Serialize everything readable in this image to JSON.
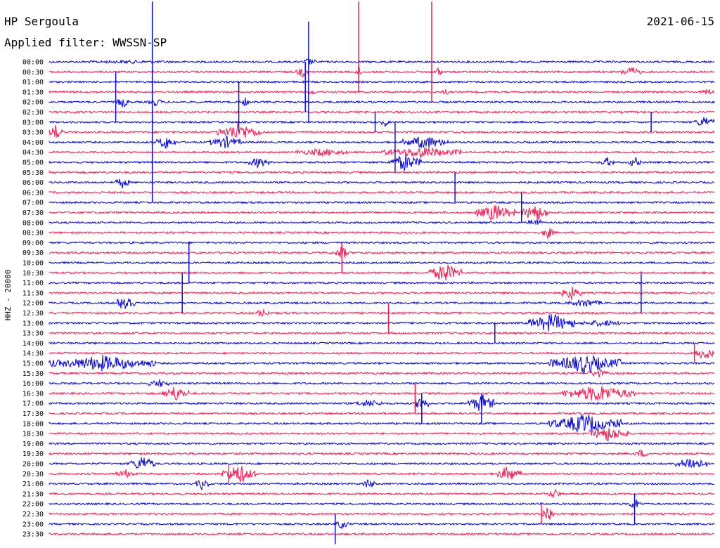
{
  "header": {
    "station": "HP Sergoula",
    "date": "2021-06-15",
    "filter_label": "Applied filter: WWSSN-SP"
  },
  "channel_label": "HHZ - 20000",
  "colors": {
    "odd": "#0000e0",
    "even": "#ff1450",
    "background": "#ffffff"
  },
  "chart_data": {
    "type": "helicorder",
    "row_interval_minutes": 30,
    "row_labels": [
      "00:00",
      "00:30",
      "01:00",
      "01:30",
      "02:00",
      "02:30",
      "03:00",
      "03:30",
      "04:00",
      "04:30",
      "05:00",
      "05:30",
      "06:00",
      "06:30",
      "07:00",
      "07:30",
      "08:00",
      "08:30",
      "09:00",
      "09:30",
      "10:00",
      "10:30",
      "11:00",
      "11:30",
      "12:00",
      "12:30",
      "13:00",
      "13:30",
      "14:00",
      "14:30",
      "15:00",
      "15:30",
      "16:00",
      "16:30",
      "17:00",
      "17:30",
      "18:00",
      "18:30",
      "19:00",
      "19:30",
      "20:00",
      "20:30",
      "21:00",
      "21:30",
      "22:00",
      "22:30",
      "23:00",
      "23:30"
    ],
    "row_colors": [
      "odd",
      "even"
    ],
    "events": [
      [
        0,
        0.06,
        0.18,
        0.1
      ],
      [
        0,
        0.38,
        0.4,
        0.35
      ],
      [
        1,
        0.37,
        0.39,
        0.5
      ],
      [
        1,
        0.46,
        0.47,
        0.6
      ],
      [
        1,
        0.58,
        0.59,
        0.6
      ],
      [
        1,
        0.86,
        0.89,
        0.5
      ],
      [
        3,
        0.39,
        0.4,
        0.3
      ],
      [
        3,
        0.59,
        0.6,
        0.45
      ],
      [
        3,
        0.98,
        1.0,
        0.3
      ],
      [
        4,
        0.1,
        0.12,
        0.6
      ],
      [
        4,
        0.15,
        0.17,
        0.4
      ],
      [
        4,
        0.29,
        0.3,
        0.5
      ],
      [
        6,
        0.5,
        0.51,
        0.5
      ],
      [
        6,
        0.97,
        1.0,
        0.6
      ],
      [
        7,
        0.0,
        0.02,
        0.8
      ],
      [
        7,
        0.25,
        0.32,
        0.9
      ],
      [
        8,
        0.16,
        0.19,
        0.7
      ],
      [
        8,
        0.24,
        0.29,
        0.6
      ],
      [
        8,
        0.53,
        0.6,
        0.7
      ],
      [
        9,
        0.37,
        0.45,
        0.35
      ],
      [
        9,
        0.5,
        0.62,
        0.55
      ],
      [
        10,
        0.3,
        0.33,
        0.55
      ],
      [
        10,
        0.51,
        0.56,
        0.9
      ],
      [
        10,
        0.83,
        0.85,
        0.5
      ],
      [
        10,
        0.87,
        0.89,
        0.5
      ],
      [
        12,
        0.1,
        0.12,
        0.6
      ],
      [
        15,
        0.64,
        0.7,
        0.9
      ],
      [
        15,
        0.71,
        0.75,
        1.0
      ],
      [
        16,
        0.72,
        0.74,
        0.5
      ],
      [
        17,
        0.74,
        0.76,
        0.6
      ],
      [
        19,
        0.43,
        0.45,
        0.75
      ],
      [
        21,
        0.57,
        0.62,
        1.0
      ],
      [
        23,
        0.77,
        0.8,
        0.7
      ],
      [
        24,
        0.1,
        0.13,
        1.0
      ],
      [
        24,
        0.78,
        0.83,
        0.4
      ],
      [
        25,
        0.31,
        0.33,
        0.45
      ],
      [
        26,
        0.72,
        0.79,
        1.0
      ],
      [
        26,
        0.8,
        0.86,
        0.3
      ],
      [
        29,
        0.97,
        1.0,
        0.7
      ],
      [
        30,
        0.0,
        0.16,
        0.8
      ],
      [
        30,
        0.75,
        0.86,
        1.0
      ],
      [
        31,
        0.81,
        0.84,
        0.4
      ],
      [
        32,
        0.15,
        0.18,
        0.4
      ],
      [
        33,
        0.17,
        0.21,
        0.8
      ],
      [
        33,
        0.77,
        0.88,
        0.9
      ],
      [
        34,
        0.46,
        0.5,
        0.4
      ],
      [
        34,
        0.55,
        0.57,
        0.9
      ],
      [
        34,
        0.63,
        0.67,
        1.0
      ],
      [
        36,
        0.75,
        0.86,
        1.0
      ],
      [
        37,
        0.81,
        0.87,
        0.8
      ],
      [
        39,
        0.88,
        0.9,
        0.4
      ],
      [
        40,
        0.12,
        0.16,
        0.8
      ],
      [
        40,
        0.94,
        0.99,
        0.7
      ],
      [
        41,
        0.1,
        0.13,
        0.4
      ],
      [
        41,
        0.26,
        0.31,
        1.0
      ],
      [
        41,
        0.67,
        0.71,
        0.8
      ],
      [
        42,
        0.22,
        0.24,
        0.6
      ],
      [
        42,
        0.47,
        0.49,
        0.5
      ],
      [
        43,
        0.75,
        0.77,
        0.5
      ],
      [
        44,
        0.87,
        0.89,
        0.6
      ],
      [
        45,
        0.74,
        0.76,
        1.0
      ],
      [
        46,
        0.43,
        0.45,
        0.5
      ]
    ],
    "spikes": [
      [
        0,
        0.155,
        -6,
        14
      ],
      [
        0,
        0.39,
        -4,
        6
      ],
      [
        1,
        0.465,
        -7,
        2
      ],
      [
        1,
        0.575,
        -7,
        3
      ],
      [
        2,
        0.385,
        -2,
        3
      ],
      [
        4,
        0.1,
        -3,
        2
      ],
      [
        4,
        0.285,
        -2,
        3
      ],
      [
        6,
        0.49,
        -1,
        1
      ],
      [
        6,
        0.905,
        -1,
        1
      ],
      [
        8,
        0.52,
        -2,
        3
      ],
      [
        12,
        0.61,
        -1,
        2
      ],
      [
        14,
        0.71,
        -1,
        2
      ],
      [
        19,
        0.44,
        -1,
        2
      ],
      [
        20,
        0.21,
        -2,
        2
      ],
      [
        22,
        0.2,
        -1,
        3
      ],
      [
        24,
        0.89,
        -3,
        1
      ],
      [
        25,
        0.51,
        -1,
        2
      ],
      [
        26,
        0.67,
        0,
        2
      ],
      [
        29,
        0.97,
        -1,
        1
      ],
      [
        33,
        0.55,
        -1,
        2
      ],
      [
        34,
        0.56,
        -1,
        2
      ],
      [
        34,
        0.65,
        -1,
        2
      ],
      [
        41,
        0.27,
        -1,
        1
      ],
      [
        44,
        0.88,
        -1,
        2
      ],
      [
        45,
        0.74,
        -1,
        1
      ],
      [
        46,
        0.43,
        -1,
        2
      ]
    ]
  }
}
